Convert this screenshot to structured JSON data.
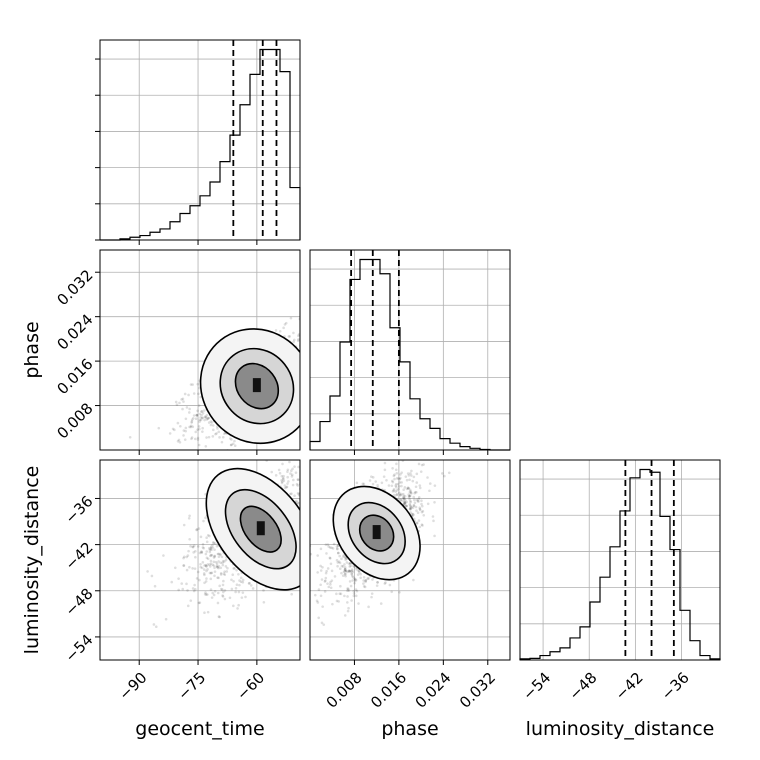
{
  "chart_data": {
    "type": "corner",
    "parameters": [
      "geocent_time",
      "phase",
      "luminosity_distance"
    ],
    "axis_labels": {
      "geocent_time": "geocent_time",
      "phase": "phase",
      "luminosity_distance": "luminosity_distance"
    },
    "ranges": {
      "geocent_time": [
        -100,
        -49
      ],
      "phase": [
        0.0,
        0.036
      ],
      "luminosity_distance": [
        -57,
        -31
      ]
    },
    "ticks": {
      "geocent_time": [
        -90,
        -75,
        -60
      ],
      "phase": [
        0.008,
        0.016,
        0.024,
        0.032
      ],
      "luminosity_distance": [
        -54,
        -48,
        -42,
        -36
      ]
    },
    "tick_labels": {
      "geocent_time": [
        "−90",
        "−75",
        "−60"
      ],
      "phase": [
        "0.008",
        "0.016",
        "0.024",
        "0.032"
      ],
      "luminosity_distance": [
        "−54",
        "−48",
        "−42",
        "−36"
      ]
    },
    "quantiles": {
      "geocent_time": [
        -66,
        -58.5,
        -55
      ],
      "phase": [
        0.0074,
        0.0113,
        0.016
      ],
      "luminosity_distance": [
        -43.3,
        -39.9,
        -37.0
      ]
    },
    "histograms": {
      "geocent_time": {
        "edges": [
          -100,
          -97.45,
          -94.9,
          -92.35,
          -89.8,
          -87.25,
          -84.7,
          -82.15,
          -79.6,
          -77.05,
          -74.5,
          -71.95,
          -69.4,
          -66.85,
          -64.3,
          -61.75,
          -59.2,
          -56.65,
          -54.1,
          -51.55,
          -49
        ],
        "counts": [
          0,
          0,
          2,
          5,
          8,
          14,
          20,
          33,
          48,
          62,
          80,
          105,
          142,
          190,
          245,
          300,
          345,
          345,
          305,
          95
        ]
      },
      "phase": {
        "edges": [
          0.0,
          0.0018,
          0.0036,
          0.0054,
          0.0072,
          0.009,
          0.0108,
          0.0126,
          0.0144,
          0.0162,
          0.018,
          0.0198,
          0.0216,
          0.0234,
          0.0252,
          0.027,
          0.0288,
          0.0306,
          0.0324,
          0.0342,
          0.036
        ],
        "counts": [
          15,
          50,
          95,
          190,
          300,
          335,
          335,
          310,
          215,
          155,
          90,
          55,
          38,
          20,
          12,
          6,
          3,
          1,
          0,
          0
        ]
      },
      "luminosity_distance": {
        "edges": [
          -57,
          -55.7,
          -54.4,
          -53.1,
          -51.8,
          -50.5,
          -49.2,
          -47.9,
          -46.6,
          -45.3,
          -44.0,
          -42.7,
          -41.4,
          -40.1,
          -38.8,
          -37.5,
          -36.2,
          -34.9,
          -33.6,
          -32.3,
          -31
        ],
        "counts": [
          2,
          3,
          8,
          15,
          22,
          40,
          60,
          105,
          150,
          205,
          270,
          330,
          345,
          340,
          260,
          200,
          90,
          35,
          8,
          2
        ]
      }
    },
    "correlations": {
      "phase_vs_geocent_time": {
        "mean": [
          -60,
          0.0115
        ],
        "sd": [
          8,
          0.0045
        ],
        "rho": 0.6,
        "contour_sd": [
          [
            5,
            0.0028
          ],
          [
            9,
            0.0045
          ],
          [
            14,
            0.0068
          ]
        ]
      },
      "luminosity_distance_vs_geocent_time": {
        "mean": [
          -59,
          -40
        ],
        "sd": [
          9,
          4
        ],
        "rho": 0.55,
        "contour_sd": [
          [
            4,
            2.2
          ],
          [
            7,
            3.8
          ],
          [
            11,
            5.8
          ]
        ]
      },
      "luminosity_distance_vs_phase": {
        "mean": [
          0.012,
          -40.5
        ],
        "sd": [
          0.004,
          3.5
        ],
        "rho": 0.6,
        "contour_sd": [
          [
            0.0028,
            1.6
          ],
          [
            0.0045,
            2.8
          ],
          [
            0.0068,
            4.3
          ]
        ]
      }
    },
    "grid": true
  }
}
